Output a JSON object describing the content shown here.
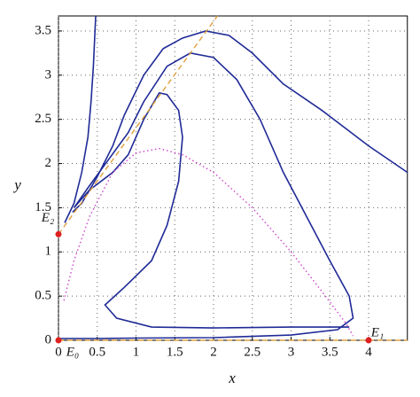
{
  "chart_data": {
    "type": "line",
    "x_label": "x",
    "y_label": "y",
    "xlim": [
      0,
      4.5
    ],
    "ylim": [
      0,
      3.67
    ],
    "xticks": [
      0,
      0.5,
      1,
      1.5,
      2,
      2.5,
      3,
      3.5,
      4
    ],
    "yticks": [
      0,
      0.5,
      1,
      1.5,
      2,
      2.5,
      3,
      3.5
    ],
    "grid": true,
    "series": [
      {
        "color": "#1f2a96",
        "style": "solid",
        "x": [
          0.08,
          0.2,
          0.3,
          0.38,
          0.42,
          0.45,
          0.48
        ],
        "values": [
          1.33,
          1.55,
          1.9,
          2.3,
          2.7,
          3.1,
          3.67
        ]
      },
      {
        "color": "#1f2a96",
        "style": "solid",
        "x": [
          4.5,
          4.0,
          3.4,
          2.9,
          2.5,
          2.2,
          1.9,
          1.6,
          1.35,
          1.1,
          0.85,
          0.7,
          0.5,
          0.3,
          0.18
        ],
        "values": [
          1.9,
          2.2,
          2.6,
          2.9,
          3.25,
          3.45,
          3.5,
          3.42,
          3.3,
          3.0,
          2.55,
          2.2,
          1.85,
          1.55,
          1.45
        ]
      },
      {
        "color": "#1f2a96",
        "style": "solid",
        "x": [
          0.0,
          0.5,
          1.0,
          2.0,
          3.0,
          3.6,
          3.8,
          3.75,
          3.5,
          3.2,
          2.9,
          2.6,
          2.3,
          2.0,
          1.7,
          1.4,
          1.1,
          0.9,
          0.65,
          0.4,
          0.2
        ],
        "values": [
          0.02,
          0.02,
          0.025,
          0.03,
          0.06,
          0.12,
          0.25,
          0.5,
          0.9,
          1.4,
          1.9,
          2.5,
          2.95,
          3.2,
          3.25,
          3.1,
          2.7,
          2.35,
          2.05,
          1.75,
          1.5
        ]
      },
      {
        "color": "#1f2a96",
        "style": "solid",
        "x": [
          3.75,
          3.0,
          2.0,
          1.2,
          0.75,
          0.6,
          0.85,
          1.2,
          1.4,
          1.55,
          1.6,
          1.55,
          1.4,
          1.3,
          1.1,
          0.9,
          0.7,
          0.4,
          0.2
        ],
        "values": [
          0.15,
          0.15,
          0.14,
          0.15,
          0.25,
          0.4,
          0.6,
          0.9,
          1.3,
          1.8,
          2.3,
          2.6,
          2.78,
          2.8,
          2.5,
          2.1,
          1.9,
          1.7,
          1.5
        ]
      },
      {
        "color": "#cc44cc",
        "style": "dotted",
        "x": [
          0.07,
          0.2,
          0.4,
          0.7,
          1.0,
          1.3,
          1.6,
          2.0,
          2.5,
          3.0,
          3.4,
          3.7,
          3.8
        ],
        "values": [
          0.45,
          0.9,
          1.4,
          1.9,
          2.12,
          2.17,
          2.1,
          1.9,
          1.5,
          1.0,
          0.55,
          0.2,
          0.05
        ]
      },
      {
        "color": "#e0a040",
        "style": "dashed",
        "x": [
          0,
          2.05
        ],
        "values": [
          1.2,
          3.67
        ]
      },
      {
        "color": "#e0a040",
        "style": "dashed",
        "x": [
          0,
          4.5
        ],
        "values": [
          0,
          0
        ]
      }
    ],
    "points": [
      {
        "label": "E₀",
        "x": 0,
        "y": 0
      },
      {
        "label": "E₁",
        "x": 4,
        "y": 0
      },
      {
        "label": "E₂",
        "x": 0,
        "y": 1.2
      }
    ],
    "point_color": "#e02020"
  }
}
